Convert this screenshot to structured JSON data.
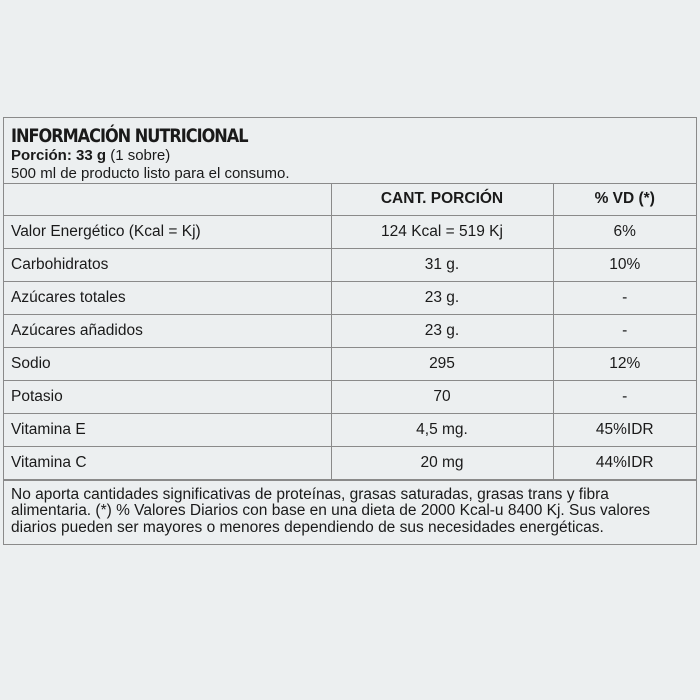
{
  "title": "INFORMACIÓN NUTRICIONAL",
  "portion_label": "Porción: 33 g",
  "portion_detail": "(1 sobre)",
  "serving_note": "500 ml de producto listo para el consumo.",
  "columns": [
    "",
    "CANT. PORCIÓN",
    "% VD (*)"
  ],
  "rows": [
    [
      "Valor Energético (Kcal = Kj)",
      "124 Kcal = 519 Kj",
      "6%"
    ],
    [
      "Carbohidratos",
      "31 g.",
      "10%"
    ],
    [
      "Azúcares totales",
      "23 g.",
      "-"
    ],
    [
      "Azúcares añadidos",
      "23 g.",
      "-"
    ],
    [
      "Sodio",
      "295",
      "12%"
    ],
    [
      "Potasio",
      "70",
      "-"
    ],
    [
      "Vitamina E",
      "4,5 mg.",
      "45%IDR"
    ],
    [
      "Vitamina C",
      "20 mg",
      "44%IDR"
    ]
  ],
  "footnote": "No aporta cantidades significativas de proteínas, grasas saturadas, grasas trans y fibra alimentaria. (*) % Valores Diarios con base en una dieta de 2000 Kcal-u 8400 Kj. Sus valores diarios pueden ser mayores o menores dependiendo de sus necesidades energéticas."
}
